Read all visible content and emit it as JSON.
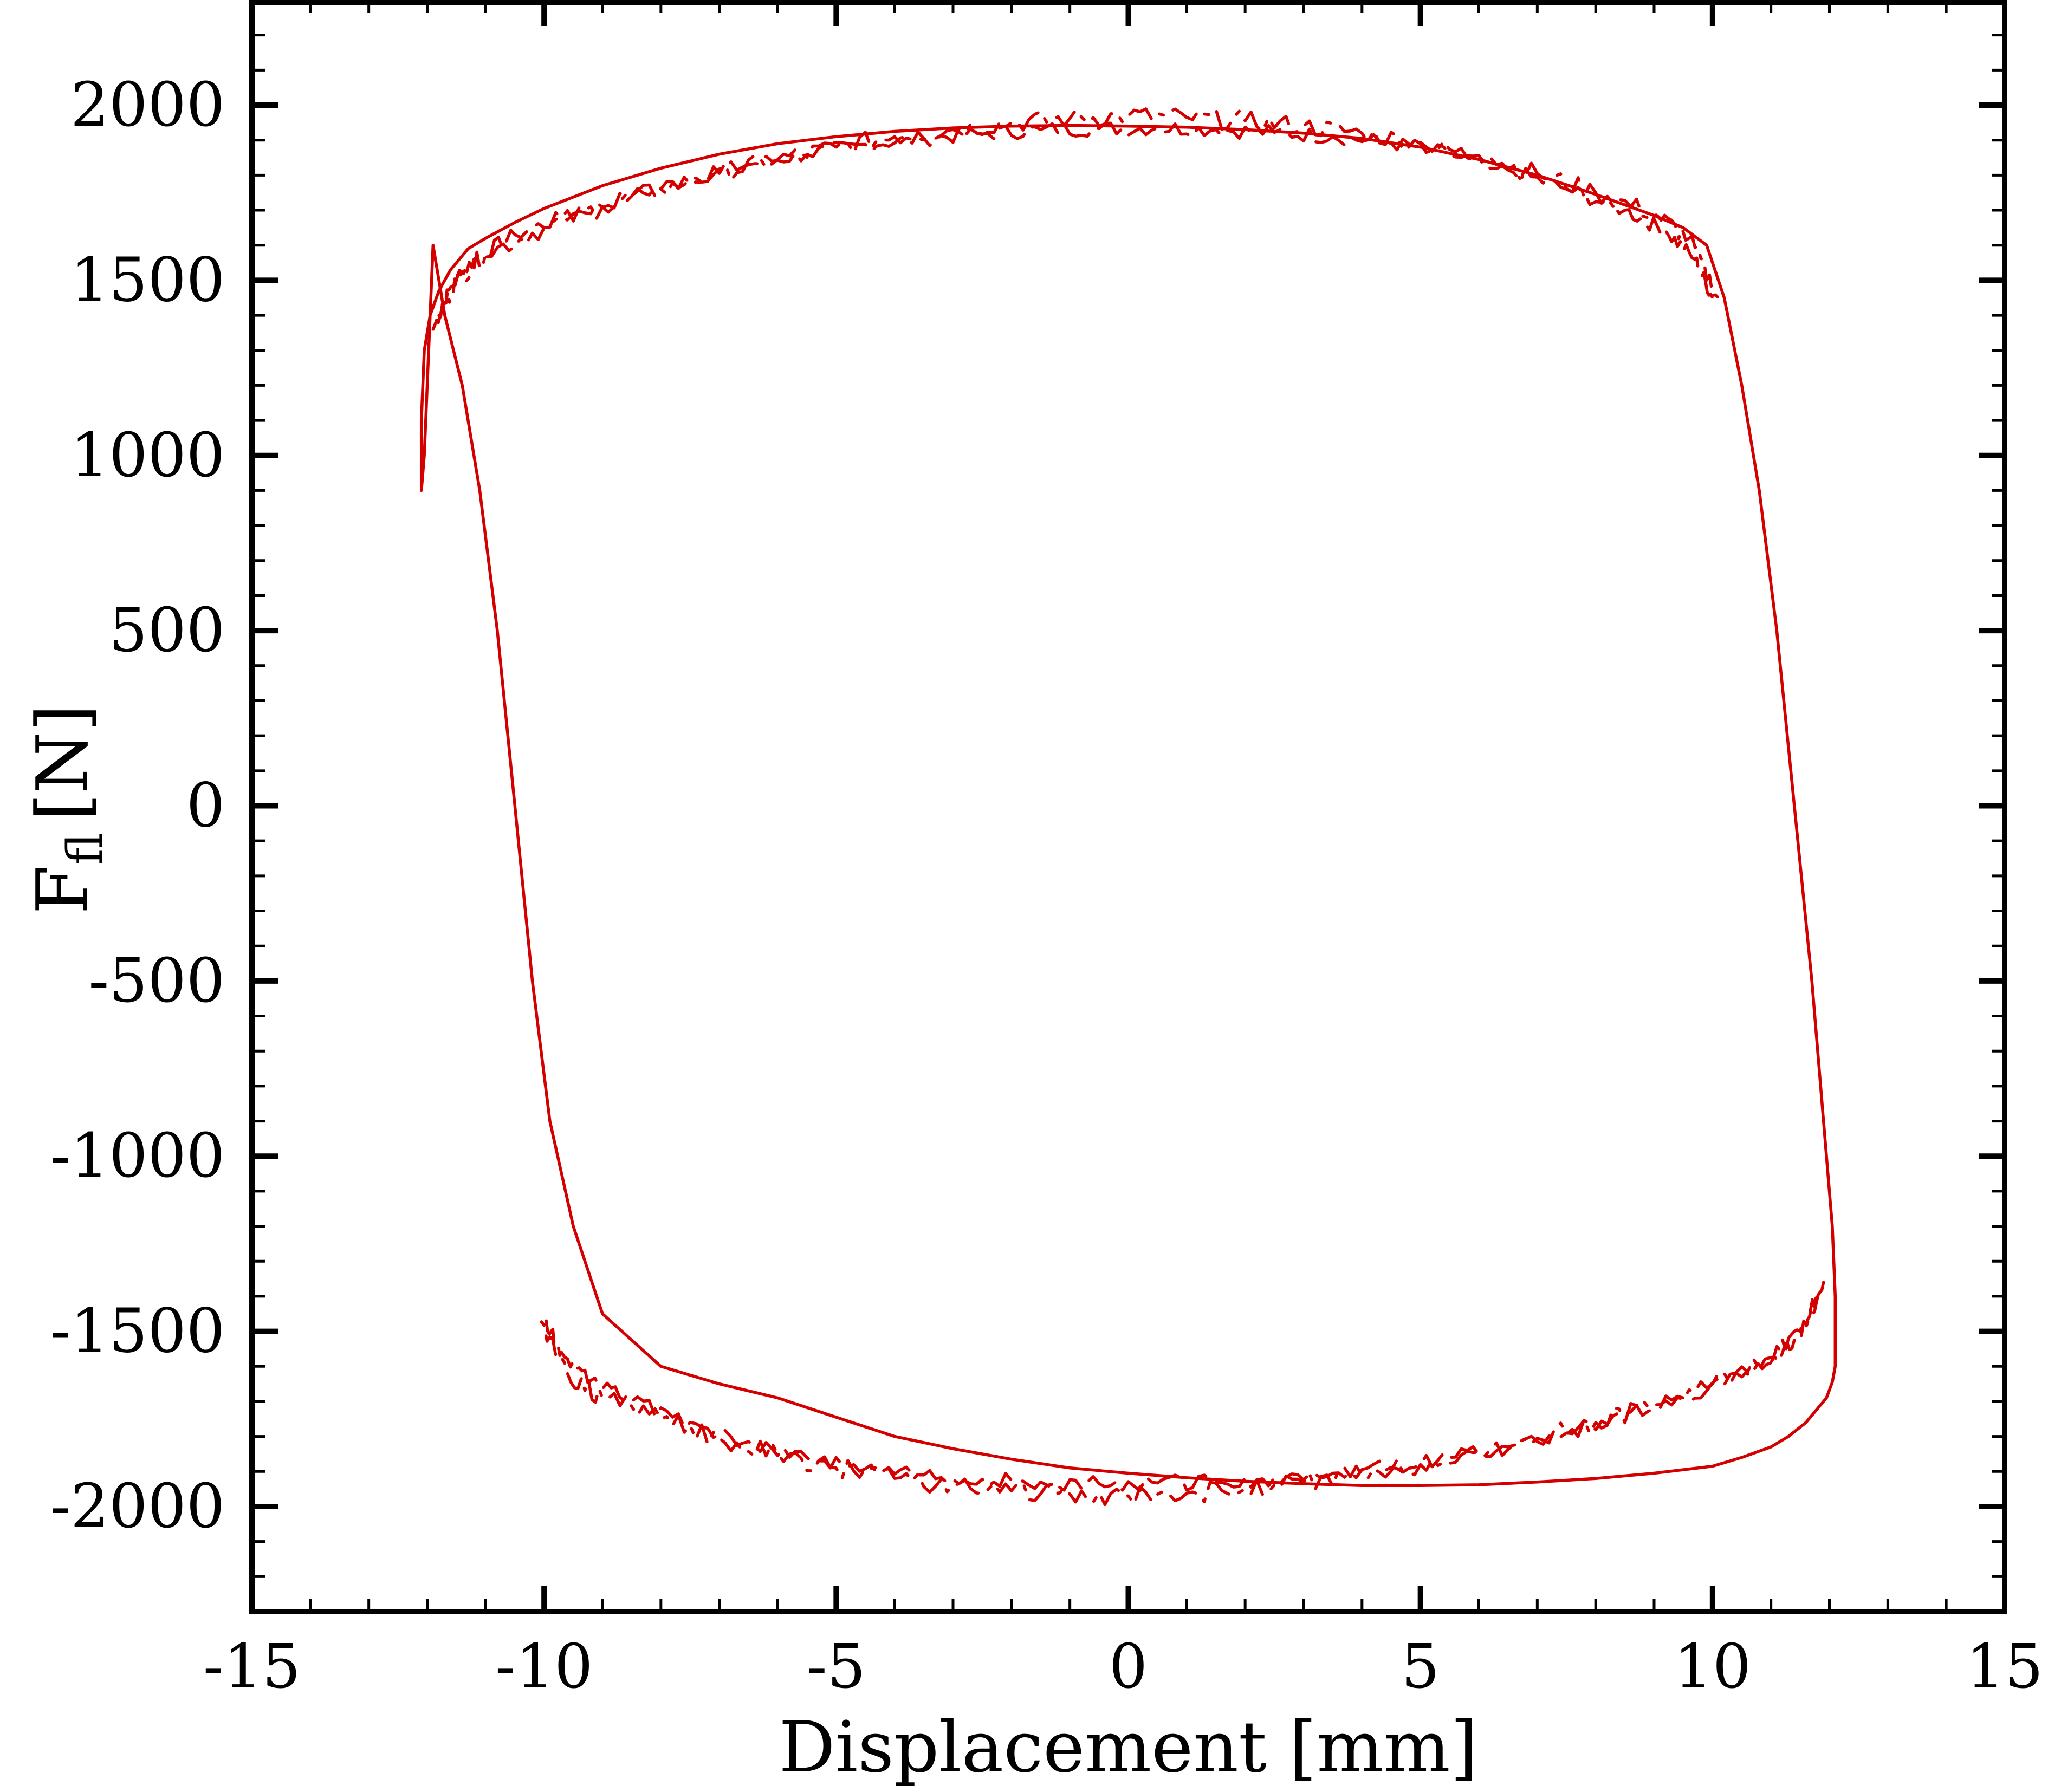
{
  "chart_data": {
    "type": "line",
    "title": "",
    "xlabel": "Displacement [mm]",
    "ylabel": {
      "main": "F",
      "subscript": "fl",
      "unit": "[N]"
    },
    "xlim": [
      -15,
      15
    ],
    "ylim": [
      -2300,
      2300
    ],
    "xticks": [
      -15,
      -10,
      -5,
      0,
      5,
      10,
      15
    ],
    "xtick_labels": [
      "-15",
      "-10",
      "-5",
      "0",
      "5",
      "10",
      "15"
    ],
    "yticks": [
      -2000,
      -1500,
      -1000,
      -500,
      0,
      500,
      1000,
      1500,
      2000
    ],
    "ytick_labels": [
      "-2000",
      "-1500",
      "-1000",
      "-500",
      "0",
      "500",
      "1000",
      "1500",
      "2000"
    ],
    "x_minor_step": 1,
    "y_minor_step": 100,
    "grid": false,
    "legend": "none",
    "line_color": "#d40000",
    "series": [
      {
        "style": "solid",
        "noise": 0,
        "x": [
          -12.1,
          -12.1,
          -12.05,
          -11.95,
          -11.8,
          -11.6,
          -11.3,
          -11.0,
          -10.5,
          -10.0,
          -9.0,
          -8.0,
          -7.0,
          -6.0,
          -5.0,
          -4.0,
          -3.0,
          -2.0,
          -1.0,
          0.0,
          1.0,
          2.0,
          3.0,
          4.0,
          5.0,
          6.0,
          7.0,
          8.0,
          9.0,
          9.5,
          9.9,
          10.2,
          10.5,
          10.8,
          11.1,
          11.4,
          11.7,
          11.9,
          12.05,
          12.1,
          12.1,
          12.05,
          11.95,
          11.8,
          11.6,
          11.3,
          11.0,
          10.5,
          10.0,
          9.0,
          8.0,
          7.0,
          6.0,
          5.0,
          4.0,
          3.0,
          2.0,
          1.0,
          0.0,
          -1.0,
          -2.0,
          -3.0,
          -4.0,
          -5.0,
          -6.0,
          -7.0,
          -8.0,
          -9.0,
          -9.5,
          -9.9,
          -10.2,
          -10.5,
          -10.8,
          -11.1,
          -11.4,
          -11.7,
          -11.9,
          -12.05,
          -12.1
        ],
        "y": [
          900,
          1100,
          1300,
          1400,
          1470,
          1530,
          1590,
          1620,
          1665,
          1705,
          1770,
          1820,
          1860,
          1890,
          1910,
          1925,
          1935,
          1940,
          1942,
          1940,
          1937,
          1930,
          1920,
          1905,
          1880,
          1845,
          1800,
          1745,
          1685,
          1650,
          1600,
          1450,
          1200,
          900,
          500,
          0,
          -500,
          -900,
          -1200,
          -1400,
          -1600,
          -1645,
          -1690,
          -1720,
          -1760,
          -1800,
          -1830,
          -1860,
          -1885,
          -1905,
          -1920,
          -1930,
          -1938,
          -1940,
          -1940,
          -1935,
          -1928,
          -1918,
          -1905,
          -1890,
          -1865,
          -1835,
          -1800,
          -1745,
          -1690,
          -1650,
          -1600,
          -1450,
          -1200,
          -900,
          -500,
          0,
          500,
          900,
          1200,
          1400,
          1600,
          1000,
          900
        ]
      },
      {
        "style": "dashed",
        "noise": 22,
        "x": [
          -11.9,
          -11.6,
          -11.2,
          -10.5,
          -9.5,
          -8.5,
          -7.5,
          -6.5,
          -5.5,
          -4.5,
          -3.5,
          -2.5,
          -1.5,
          -0.5,
          0.5,
          1.5,
          2.5,
          3.5,
          4.5,
          5.5,
          6.5,
          7.5,
          8.5,
          9.2,
          9.7,
          10.0
        ],
        "y": [
          1360,
          1480,
          1560,
          1630,
          1690,
          1740,
          1790,
          1830,
          1860,
          1888,
          1905,
          1918,
          1930,
          1933,
          1935,
          1930,
          1922,
          1910,
          1892,
          1860,
          1815,
          1760,
          1700,
          1640,
          1560,
          1450
        ]
      },
      {
        "style": "dashed",
        "noise": 22,
        "x": [
          11.9,
          11.6,
          11.2,
          10.5,
          9.5,
          8.5,
          7.5,
          6.5,
          5.5,
          4.5,
          3.5,
          2.5,
          1.5,
          0.5,
          -0.5,
          -1.5,
          -2.5,
          -3.5,
          -4.5,
          -5.5,
          -6.5,
          -7.5,
          -8.5,
          -9.2,
          -9.7,
          -10.0
        ],
        "y": [
          -1360,
          -1480,
          -1560,
          -1630,
          -1690,
          -1740,
          -1790,
          -1830,
          -1860,
          -1888,
          -1905,
          -1918,
          -1930,
          -1933,
          -1935,
          -1930,
          -1922,
          -1910,
          -1892,
          -1860,
          -1815,
          -1760,
          -1700,
          -1640,
          -1560,
          -1470
        ]
      },
      {
        "style": "dashdot",
        "noise": 28,
        "x": [
          -11.8,
          -11.5,
          -11.0,
          -10.0,
          -9.0,
          -8.0,
          -7.0,
          -6.0,
          -5.0,
          -4.0,
          -3.0,
          -2.0,
          -1.0,
          0.0,
          1.0,
          2.0,
          3.0,
          4.0,
          5.0,
          6.0,
          7.0,
          8.0,
          9.0,
          9.6,
          10.1
        ],
        "y": [
          1400,
          1500,
          1575,
          1650,
          1710,
          1760,
          1805,
          1845,
          1880,
          1910,
          1930,
          1950,
          1962,
          1970,
          1965,
          1955,
          1940,
          1920,
          1890,
          1850,
          1805,
          1750,
          1690,
          1620,
          1450
        ]
      },
      {
        "style": "dashdot",
        "noise": 28,
        "x": [
          11.8,
          11.5,
          11.0,
          10.0,
          9.0,
          8.0,
          7.0,
          6.0,
          5.0,
          4.0,
          3.0,
          2.0,
          1.0,
          0.0,
          -1.0,
          -2.0,
          -3.0,
          -4.0,
          -5.0,
          -6.0,
          -7.0,
          -8.0,
          -9.0,
          -9.6,
          -10.1
        ],
        "y": [
          -1400,
          -1500,
          -1575,
          -1650,
          -1710,
          -1760,
          -1805,
          -1845,
          -1880,
          -1910,
          -1930,
          -1950,
          -1962,
          -1970,
          -1965,
          -1955,
          -1940,
          -1920,
          -1890,
          -1850,
          -1805,
          -1750,
          -1690,
          -1620,
          -1470
        ]
      }
    ]
  }
}
